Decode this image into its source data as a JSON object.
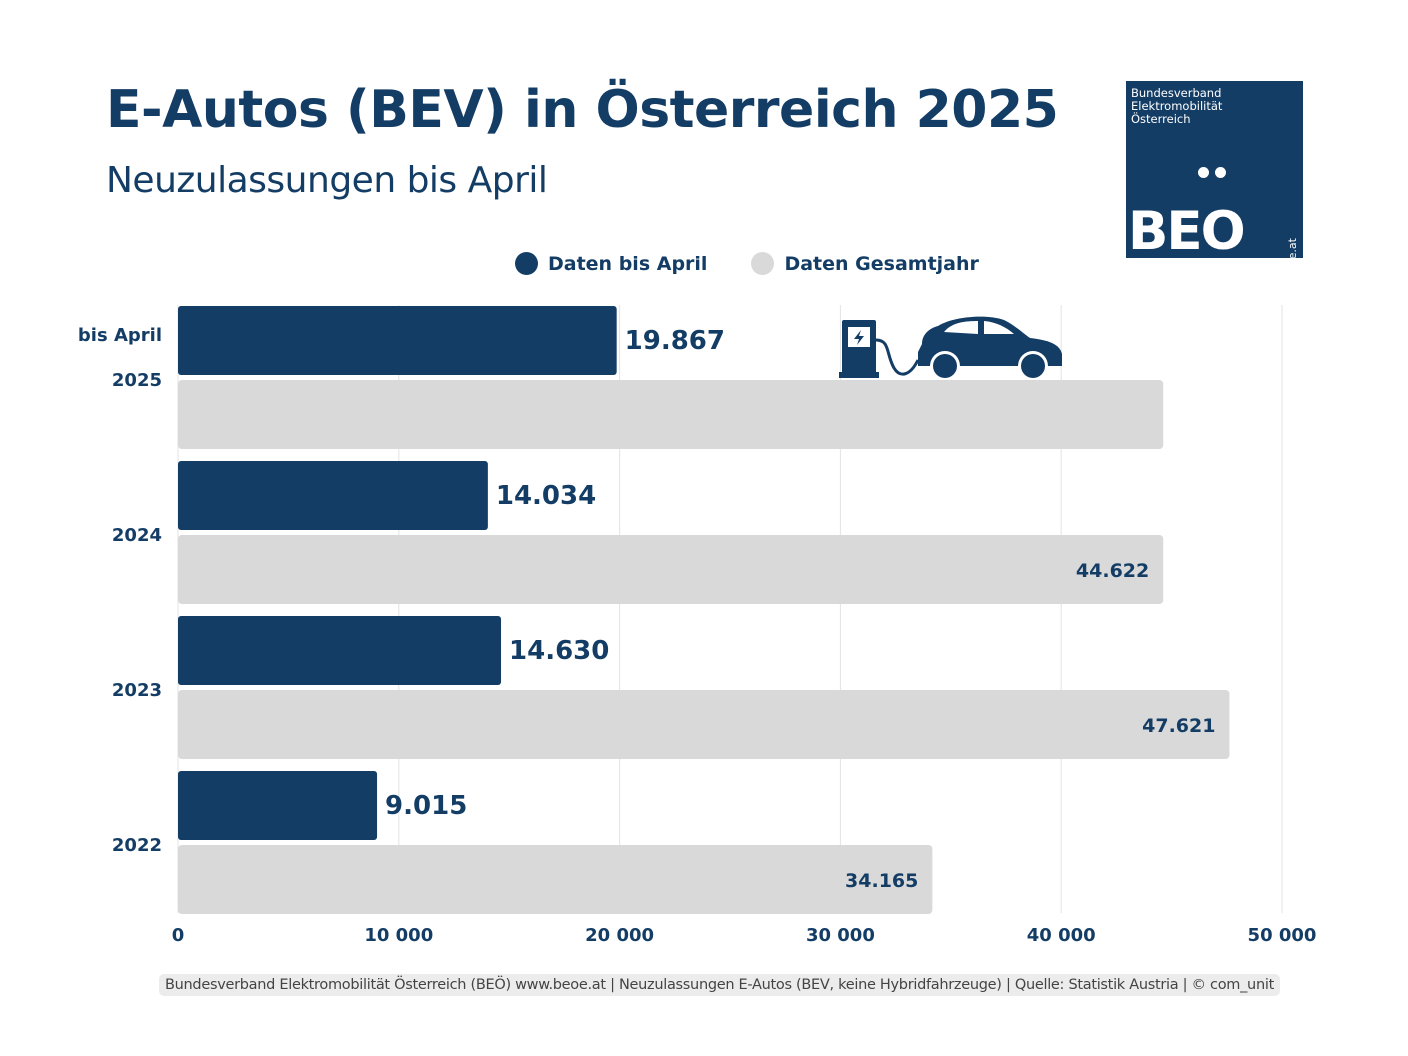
{
  "header": {
    "title": "E-Autos (BEV) in Österreich 2025",
    "subtitle": "Neuzulassungen bis April"
  },
  "logo": {
    "line1": "Bundesverband",
    "line2": "Elektromobilität",
    "line3": "Österreich",
    "wordmark": "BEO",
    "url": "beoe.at",
    "icon": "umlaut-dots-icon"
  },
  "colors": {
    "primary": "#143d66",
    "secondary": "#d9d9d9",
    "grid": "#e3e3e3"
  },
  "illustration": {
    "icon": "ev-charging-car-icon"
  },
  "footer": {
    "text": "Bundesverband Elektromobilität Österreich (BEÖ) www.beoe.at | Neuzulassungen E-Autos (BEV, keine Hybridfahrzeuge) | Quelle: Statistik Austria | © com_unit"
  },
  "chart_data": {
    "type": "bar",
    "orientation": "horizontal",
    "title": "E-Autos (BEV) in Österreich 2025",
    "subtitle": "Neuzulassungen bis April",
    "categories": [
      "2025",
      "2024",
      "2023",
      "2022"
    ],
    "category_prefix": {
      "2025": "bis April"
    },
    "series": [
      {
        "name": "Daten bis April",
        "color": "#143d66",
        "values": [
          19867,
          14034,
          14630,
          9015
        ],
        "labels": [
          "19.867",
          "14.034",
          "14.630",
          "9.015"
        ]
      },
      {
        "name": "Daten Gesamtjahr",
        "color": "#d9d9d9",
        "values": [
          44622,
          44622,
          47621,
          34165
        ],
        "labels": [
          "",
          "44.622",
          "47.621",
          "34.165"
        ]
      }
    ],
    "xlim": [
      0,
      50000
    ],
    "xticks": [
      0,
      10000,
      20000,
      30000,
      40000,
      50000
    ],
    "xtick_labels": [
      "0",
      "10 000",
      "20 000",
      "30 000",
      "40 000",
      "50 000"
    ],
    "xlabel": "",
    "ylabel": "",
    "grid": "vertical",
    "legend": "top-center"
  }
}
